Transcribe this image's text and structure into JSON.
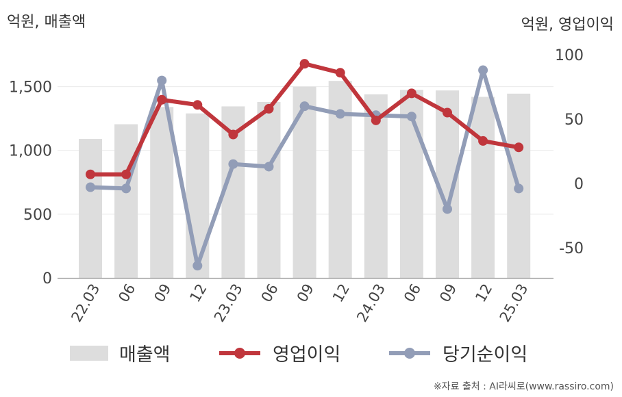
{
  "chart_data": {
    "type": "bar+line",
    "categories": [
      "22.03",
      "06",
      "09",
      "12",
      "23.03",
      "06",
      "09",
      "12",
      "24.03",
      "06",
      "09",
      "12",
      "25.03"
    ],
    "left_axis": {
      "unit_label": "억원, 매출액",
      "ylim": [
        0,
        1750
      ],
      "ticks": [
        0,
        500,
        1000,
        1500
      ],
      "tick_labels": [
        "0",
        "500",
        "1,000",
        "1,500"
      ]
    },
    "right_axis": {
      "unit_label": "억원, 영업이익",
      "ylim": [
        -73.5,
        100
      ],
      "ticks": [
        -50,
        0,
        50,
        100
      ],
      "tick_labels": [
        "-50",
        "0",
        "50",
        "100"
      ]
    },
    "series": [
      {
        "name": "매출액",
        "kind": "bar",
        "axis": "left",
        "color": "#dddddd",
        "values": [
          1090,
          1205,
          1340,
          1290,
          1345,
          1380,
          1500,
          1545,
          1440,
          1475,
          1470,
          1420,
          1445
        ]
      },
      {
        "name": "영업이익",
        "kind": "line",
        "axis": "right",
        "color": "#c0363c",
        "values": [
          7,
          7,
          65,
          61,
          38,
          58,
          93,
          86,
          49,
          70,
          55,
          33,
          28
        ]
      },
      {
        "name": "당기순이익",
        "kind": "line",
        "axis": "right",
        "color": "#929db7",
        "values": [
          -3,
          -4,
          80,
          -64,
          15,
          13,
          60,
          54,
          53,
          52,
          -20,
          88,
          -4
        ]
      }
    ],
    "grid": "horizontal",
    "legend_position": "bottom"
  },
  "source": "※자료 출처 : AI라씨로(www.rassiro.com)"
}
